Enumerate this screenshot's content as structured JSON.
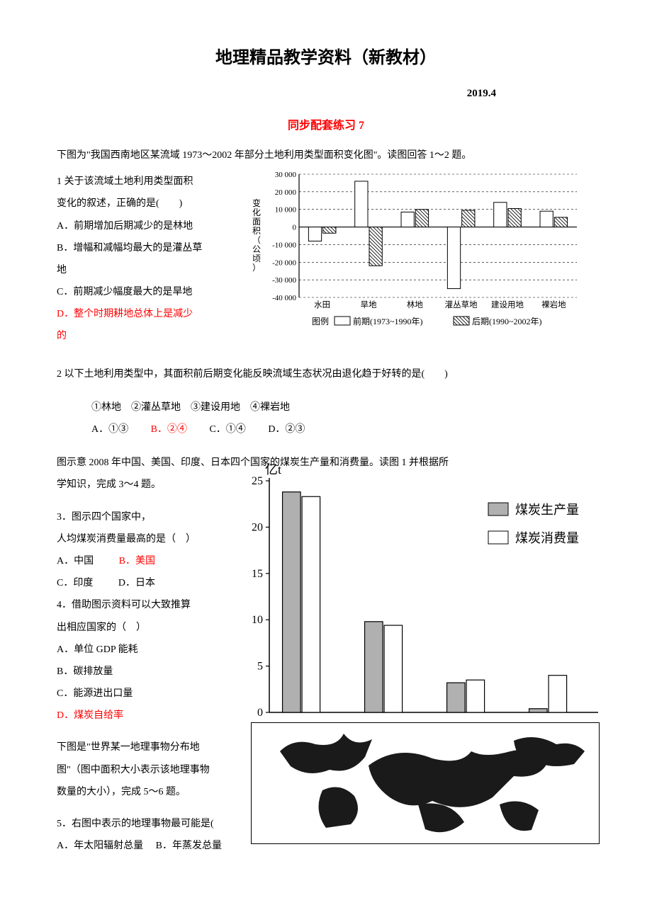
{
  "header": {
    "title": "地理精品教学资料（新教材）",
    "date": "2019.4",
    "subtitle": "同步配套练习 7"
  },
  "section1": {
    "intro": "下图为\"我国西南地区某流域 1973～2002 年部分土地利用类型面积变化图\"。读图回答 1～2 题。",
    "q1_stem_l1": "1 关于该流域土地利用类型面积",
    "q1_stem_l2": "变化的叙述，正确的是(　　)",
    "q1_a": "A．前期增加后期减少的是林地",
    "q1_b_l1": "B．增幅和减幅均最大的是灌丛草",
    "q1_b_l2": "地",
    "q1_c": "C．前期减少幅度最大的是旱地",
    "q1_d_l1": "D．整个时期耕地总体上是减少",
    "q1_d_l2": "的"
  },
  "chart1": {
    "y_label": "变化面积（公顷）",
    "y_ticks": [
      30000,
      20000,
      10000,
      0,
      -10000,
      -20000,
      -30000,
      -40000
    ],
    "y_tick_labels": [
      "30 000",
      "20 000",
      "10 000",
      "0",
      "-10 000",
      "-20 000",
      "-30 000",
      "-40 000"
    ],
    "categories": [
      "水田",
      "旱地",
      "林地",
      "灌丛草地",
      "建设用地",
      "裸岩地"
    ],
    "series1_label": "前期(1973~1990年)",
    "series2_label": "后期(1990~2002年)",
    "series1_fill": "#ffffff",
    "series2_fill_pattern": true,
    "stroke": "#000000",
    "grid_dash": "3,3",
    "values_early": [
      -8000,
      26000,
      8500,
      -35000,
      14000,
      9000
    ],
    "values_late": [
      -3500,
      -22000,
      10000,
      9500,
      10500,
      5500
    ]
  },
  "section2": {
    "q2_stem": "2 以下土地利用类型中，其面积前后期变化能反映流域生态状况由退化趋于好转的是(　　)",
    "q2_choices_line": "①林地　②灌丛草地　③建设用地　④裸岩地",
    "q2_a": "A．①③",
    "q2_b": "B．②④",
    "q2_c": "C．①④",
    "q2_d": "D．②③"
  },
  "section3": {
    "intro_l1": "图示意 2008 年中国、美国、印度、日本四个国家的煤炭生产量和消费量。读图 1 并根据所",
    "intro_l2": "学知识，完成 3～4 题。",
    "q3_stem_l1": "3．图示四个国家中，",
    "q3_stem_l2": "人均煤炭消费量最高的是（　）",
    "q3_a": "A．中国",
    "q3_b": "B．美国",
    "q3_c": "C．印度",
    "q3_d": "D．日本",
    "q4_stem_l1": "4．借助图示资料可以大致推算",
    "q4_stem_l2": "出相应国家的（　）",
    "q4_a": "A．单位 GDP 能耗",
    "q4_b": "B．碳排放量",
    "q4_c": "C．能源进出口量",
    "q4_d": "D．煤炭自给率"
  },
  "chart2": {
    "y_unit": "亿t",
    "y_ticks": [
      0,
      5,
      10,
      15,
      20,
      25
    ],
    "legend1": "煤炭生产量",
    "legend2": "煤炭消费量",
    "legend1_fill": "#b0b0b0",
    "legend2_fill": "#ffffff",
    "stroke": "#000000",
    "values_prod": [
      23.8,
      9.8,
      3.2,
      0.4
    ],
    "values_cons": [
      23.3,
      9.4,
      3.5,
      4.0
    ]
  },
  "section4": {
    "intro_l1": "下图是\"世界某一地理事物分布地",
    "intro_l2": "图\"（图中面积大小表示该地理事物",
    "intro_l3": "数量的大小），完成 5～6 题。",
    "q5_stem": "5．右图中表示的地理事物最可能是(",
    "q5_a": "A．年太阳辐射总量",
    "q5_b": "B．年蒸发总量"
  }
}
